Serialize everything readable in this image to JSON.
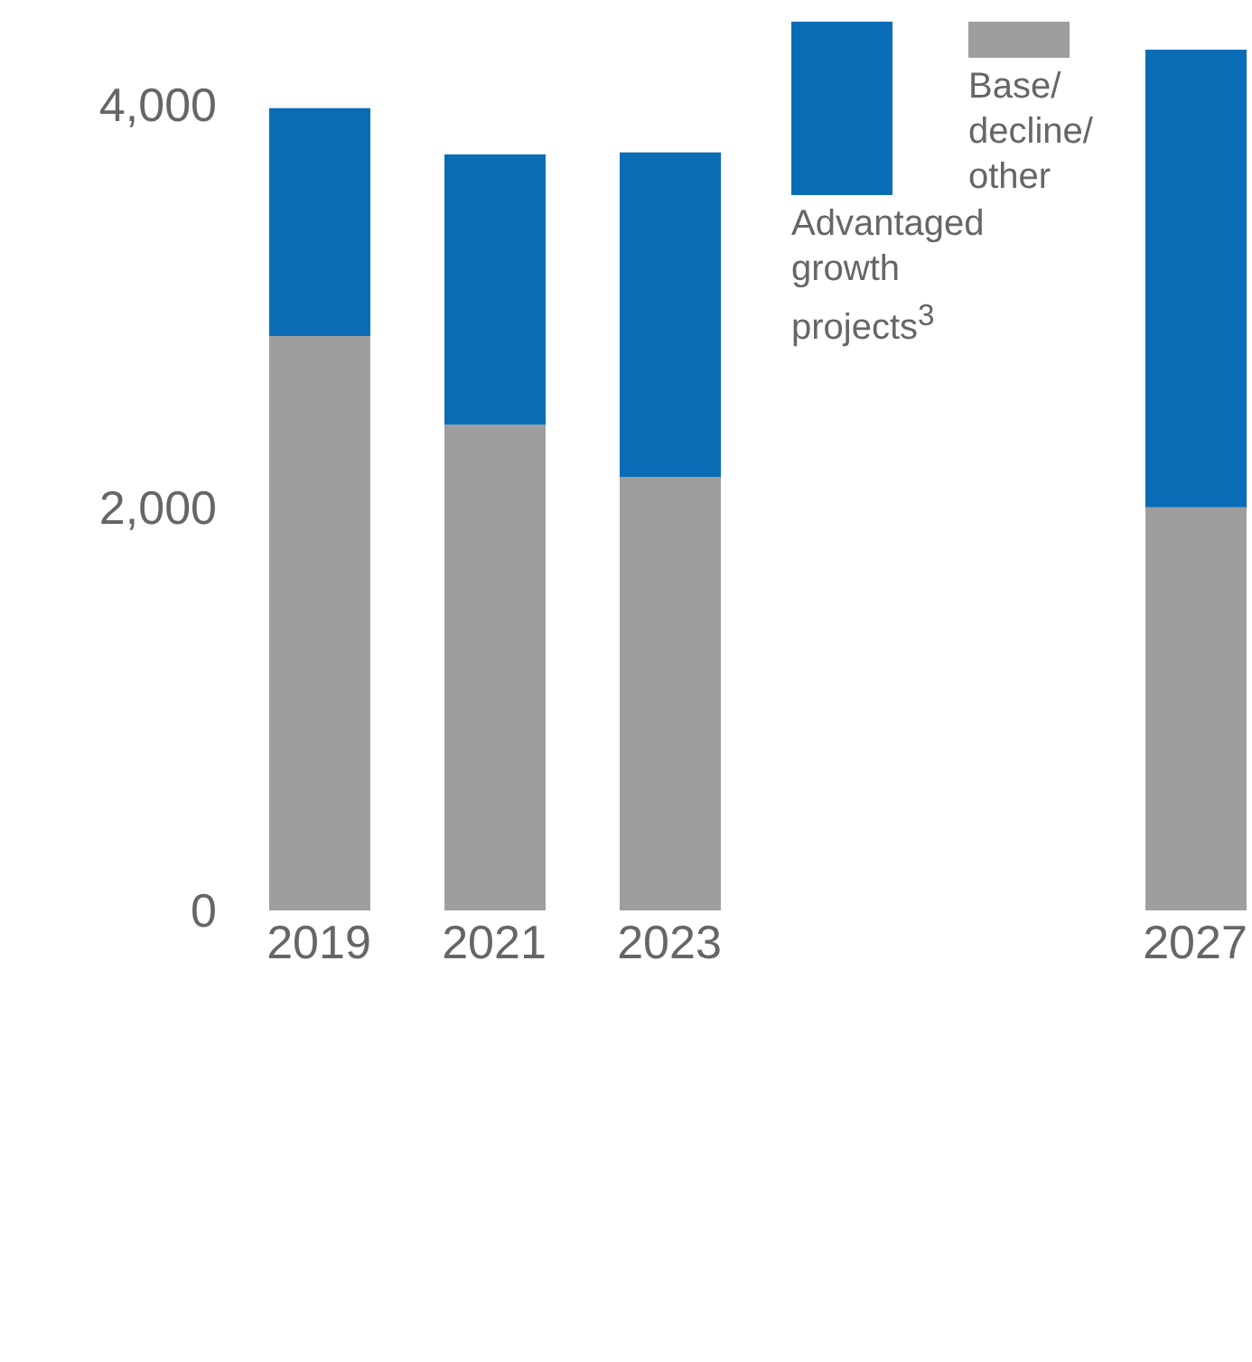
{
  "chart_data": {
    "type": "bar",
    "stacked": true,
    "categories": [
      "2019",
      "2021",
      "2023",
      null,
      null,
      "2027"
    ],
    "series": [
      {
        "name": "Base/ decline/ other",
        "color": "#9e9e9e",
        "values": [
          2850,
          2410,
          2150,
          null,
          null,
          2000
        ]
      },
      {
        "name": "Advantaged growth projects$^{3}$",
        "color": "#0a6cb4",
        "values": [
          1130,
          1340,
          1610,
          null,
          null,
          2270
        ]
      }
    ],
    "ylim": [
      0,
      4400
    ],
    "yticks": [
      {
        "value": 0,
        "label": "0"
      },
      {
        "value": 2000,
        "label": "2,000"
      },
      {
        "value": 4000,
        "label": "4,000"
      }
    ],
    "grid": false,
    "legend": "top"
  }
}
